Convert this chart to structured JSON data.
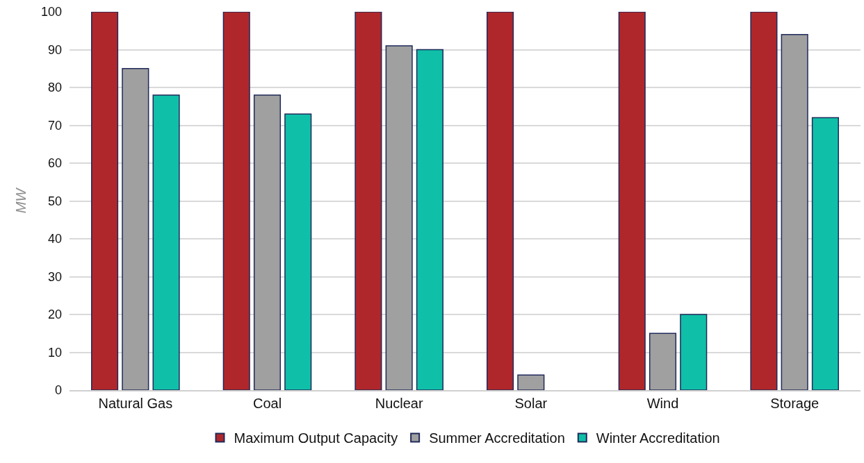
{
  "chart_data": {
    "type": "bar",
    "ylabel": "MW",
    "categories": [
      "Natural Gas",
      "Coal",
      "Nuclear",
      "Solar",
      "Wind",
      "Storage"
    ],
    "series": [
      {
        "name": "Maximum Output Capacity",
        "color": "#b0272b",
        "values": [
          100,
          100,
          100,
          100,
          100,
          100
        ]
      },
      {
        "name": "Summer Accreditation",
        "color": "#a0a0a0",
        "values": [
          85,
          78,
          91,
          4,
          15,
          94
        ]
      },
      {
        "name": "Winter Accreditation",
        "color": "#10bfa8",
        "values": [
          78,
          73,
          90,
          null,
          20,
          72
        ]
      }
    ],
    "ylim": [
      0,
      100
    ],
    "yticks": [
      0,
      10,
      20,
      30,
      40,
      50,
      60,
      70,
      80,
      90,
      100
    ],
    "grid": "y",
    "legend": "bottom"
  }
}
